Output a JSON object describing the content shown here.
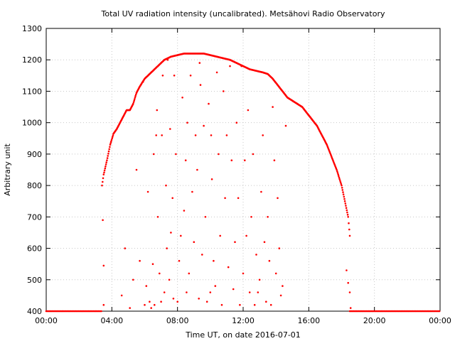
{
  "chart_data": {
    "type": "scatter",
    "title": "Total UV radiation intensity (uncalibrated). Metsähovi Radio Observatory",
    "xlabel": "Time UT, on date 2016-07-01",
    "ylabel": "Arbitrary unit",
    "xlim": [
      0,
      24
    ],
    "ylim": [
      400,
      1300
    ],
    "x_unit": "hours UT",
    "xticks": [
      0,
      4,
      8,
      12,
      16,
      20,
      24
    ],
    "xtick_labels": [
      "00:00",
      "04:00",
      "08:00",
      "12:00",
      "16:00",
      "20:00",
      "00:00"
    ],
    "yticks": [
      400,
      500,
      600,
      700,
      800,
      900,
      1000,
      1100,
      1200,
      1300
    ],
    "ytick_labels": [
      "400",
      "500",
      "600",
      "700",
      "800",
      "900",
      "1000",
      "1100",
      "1200",
      "1300"
    ],
    "grid": true,
    "marker_color": "#ff0000",
    "envelope": {
      "x": [
        3.4,
        3.5,
        3.7,
        3.9,
        4.1,
        4.3,
        4.5,
        4.7,
        4.9,
        5.1,
        5.3,
        5.5,
        5.7,
        6.0,
        6.4,
        6.8,
        7.2,
        7.6,
        8.0,
        8.4,
        8.8,
        9.2,
        9.6,
        10.0,
        10.4,
        10.8,
        11.2,
        11.6,
        12.0,
        12.4,
        12.8,
        13.2,
        13.5,
        13.8,
        14.1,
        14.4,
        14.7,
        15.0,
        15.3,
        15.6,
        15.9,
        16.2,
        16.5,
        16.8,
        17.1,
        17.4,
        17.7,
        18.0,
        18.2,
        18.4,
        18.5
      ],
      "y": [
        800,
        835,
        880,
        930,
        965,
        980,
        1000,
        1020,
        1040,
        1040,
        1060,
        1095,
        1115,
        1140,
        1160,
        1180,
        1200,
        1210,
        1215,
        1220,
        1220,
        1220,
        1220,
        1215,
        1210,
        1205,
        1200,
        1190,
        1180,
        1170,
        1165,
        1160,
        1155,
        1140,
        1120,
        1100,
        1080,
        1070,
        1060,
        1050,
        1030,
        1010,
        990,
        960,
        930,
        890,
        850,
        800,
        750,
        700,
        640
      ]
    },
    "scatter": {
      "x": [
        3.45,
        3.5,
        3.5,
        4.6,
        4.8,
        5.0,
        5.1,
        5.3,
        5.5,
        5.7,
        5.9,
        6.0,
        6.1,
        6.2,
        6.3,
        6.4,
        6.5,
        6.55,
        6.6,
        6.7,
        6.75,
        6.8,
        6.9,
        7.0,
        7.05,
        7.1,
        7.2,
        7.3,
        7.35,
        7.4,
        7.5,
        7.55,
        7.6,
        7.7,
        7.75,
        7.8,
        7.9,
        8.0,
        8.1,
        8.2,
        8.3,
        8.4,
        8.5,
        8.55,
        8.6,
        8.7,
        8.8,
        8.9,
        9.0,
        9.1,
        9.2,
        9.3,
        9.35,
        9.4,
        9.5,
        9.6,
        9.7,
        9.8,
        9.9,
        10.0,
        10.05,
        10.1,
        10.2,
        10.3,
        10.4,
        10.5,
        10.6,
        10.7,
        10.8,
        10.9,
        11.0,
        11.1,
        11.2,
        11.3,
        11.4,
        11.5,
        11.6,
        11.7,
        11.8,
        11.9,
        12.0,
        12.1,
        12.2,
        12.3,
        12.4,
        12.5,
        12.6,
        12.7,
        12.8,
        12.9,
        13.0,
        13.1,
        13.2,
        13.3,
        13.4,
        13.5,
        13.6,
        13.7,
        13.8,
        13.9,
        14.0,
        14.1,
        14.2,
        14.3,
        14.4,
        14.6,
        18.3,
        18.4,
        18.5,
        18.55
      ],
      "y": [
        690,
        545,
        420,
        450,
        600,
        1040,
        410,
        500,
        850,
        560,
        1130,
        420,
        480,
        780,
        430,
        410,
        550,
        900,
        420,
        960,
        1040,
        700,
        520,
        430,
        960,
        1150,
        460,
        800,
        600,
        1200,
        500,
        980,
        650,
        760,
        440,
        1150,
        900,
        430,
        560,
        640,
        1080,
        720,
        880,
        460,
        1000,
        520,
        1150,
        780,
        620,
        960,
        850,
        440,
        1190,
        1120,
        580,
        990,
        700,
        430,
        1060,
        460,
        960,
        820,
        560,
        480,
        1160,
        900,
        640,
        420,
        1100,
        760,
        960,
        540,
        1180,
        880,
        470,
        620,
        1000,
        760,
        420,
        1180,
        520,
        880,
        640,
        1040,
        460,
        700,
        900,
        420,
        580,
        460,
        500,
        780,
        960,
        620,
        430,
        700,
        560,
        420,
        1050,
        880,
        520,
        760,
        600,
        450,
        480,
        990,
        530,
        490,
        460,
        410
      ]
    },
    "baseline": {
      "segments": [
        [
          0,
          3.4
        ],
        [
          18.5,
          24
        ]
      ],
      "y": 400
    }
  }
}
